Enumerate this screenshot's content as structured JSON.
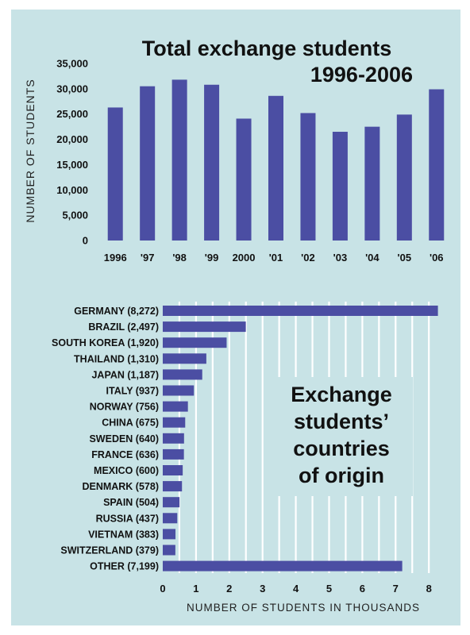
{
  "colors": {
    "panel": "#c8e3e6",
    "bar": "#4b4ea3",
    "grid": "#ffffff",
    "text": "#111111"
  },
  "chart_data": [
    {
      "type": "bar",
      "title_line1": "Total exchange students",
      "title_line2": "1996-2006",
      "categories": [
        "1996",
        "'97",
        "'98",
        "'99",
        "2000",
        "'01",
        "'02",
        "'03",
        "'04",
        "'05",
        "'06"
      ],
      "values": [
        26300,
        30500,
        31800,
        30800,
        24100,
        28600,
        25200,
        21500,
        22500,
        24900,
        29900
      ],
      "ylabel": "NUMBER OF STUDENTS",
      "ylim": [
        0,
        35000
      ],
      "yticks": [
        "0",
        "5,000",
        "10,000",
        "15,000",
        "20,000",
        "25,000",
        "30,000",
        "35,000"
      ],
      "ytick_values": [
        0,
        5000,
        10000,
        15000,
        20000,
        25000,
        30000,
        35000
      ]
    },
    {
      "type": "bar",
      "orientation": "horizontal",
      "title_lines": [
        "Exchange",
        "students’",
        "countries",
        "of origin"
      ],
      "categories": [
        "GERMANY (8,272)",
        "BRAZIL (2,497)",
        "SOUTH KOREA (1,920)",
        "THAILAND (1,310)",
        "JAPAN (1,187)",
        "ITALY (937)",
        "NORWAY (756)",
        "CHINA (675)",
        "SWEDEN (640)",
        "FRANCE (636)",
        "MEXICO (600)",
        "DENMARK (578)",
        "SPAIN (504)",
        "RUSSIA (437)",
        "VIETNAM (383)",
        "SWITZERLAND (379)",
        "OTHER (7,199)"
      ],
      "values": [
        8.272,
        2.497,
        1.92,
        1.31,
        1.187,
        0.937,
        0.756,
        0.675,
        0.64,
        0.636,
        0.6,
        0.578,
        0.504,
        0.437,
        0.383,
        0.379,
        7.199
      ],
      "xlabel": "NUMBER OF STUDENTS IN THOUSANDS",
      "xlim": [
        0,
        8.5
      ],
      "xticks": [
        "0",
        "1",
        "2",
        "3",
        "4",
        "5",
        "6",
        "7",
        "8"
      ],
      "xtick_values": [
        0,
        1,
        2,
        3,
        4,
        5,
        6,
        7,
        8
      ],
      "grid": true
    }
  ]
}
